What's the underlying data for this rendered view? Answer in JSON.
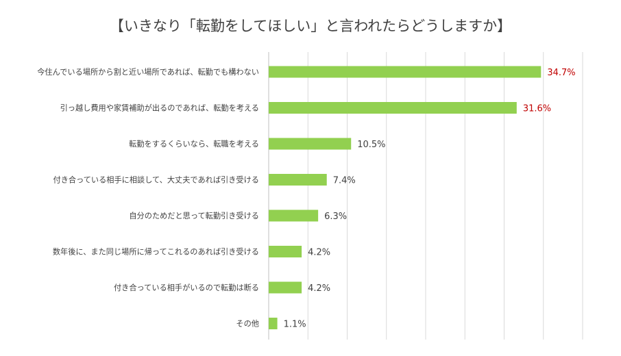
{
  "chart_data": {
    "type": "bar",
    "orientation": "horizontal",
    "title": "【いきなり「転勤をしてほしい」と言われたらどうしますか】",
    "categories": [
      "今住んでいる場所から割と近い場所であれば、転勤でも構わない",
      "引っ越し費用や家賃補助が出るのであれば、転勤を考える",
      "転勤をするくらいなら、転職を考える",
      "付き合っている相手に相談して、大丈夫であれば引き受ける",
      "自分のためだと思って転勤引き受ける",
      "数年後に、また同じ場所に帰ってこれるのあれば引き受ける",
      "付き合っている相手がいるので転勤は断る",
      "その他"
    ],
    "values": [
      34.7,
      31.6,
      10.5,
      7.4,
      6.3,
      4.2,
      4.2,
      1.1
    ],
    "value_labels": [
      "34.7%",
      "31.6%",
      "10.5%",
      "7.4%",
      "6.3%",
      "4.2%",
      "4.2%",
      "1.1%"
    ],
    "xlim": [
      0,
      40
    ],
    "grid": true,
    "colors": {
      "bar": "#92d050",
      "highlight_label": "#c00000",
      "label": "#404040",
      "grid": "#d9d9d9"
    },
    "highlight_top_n": 2
  }
}
